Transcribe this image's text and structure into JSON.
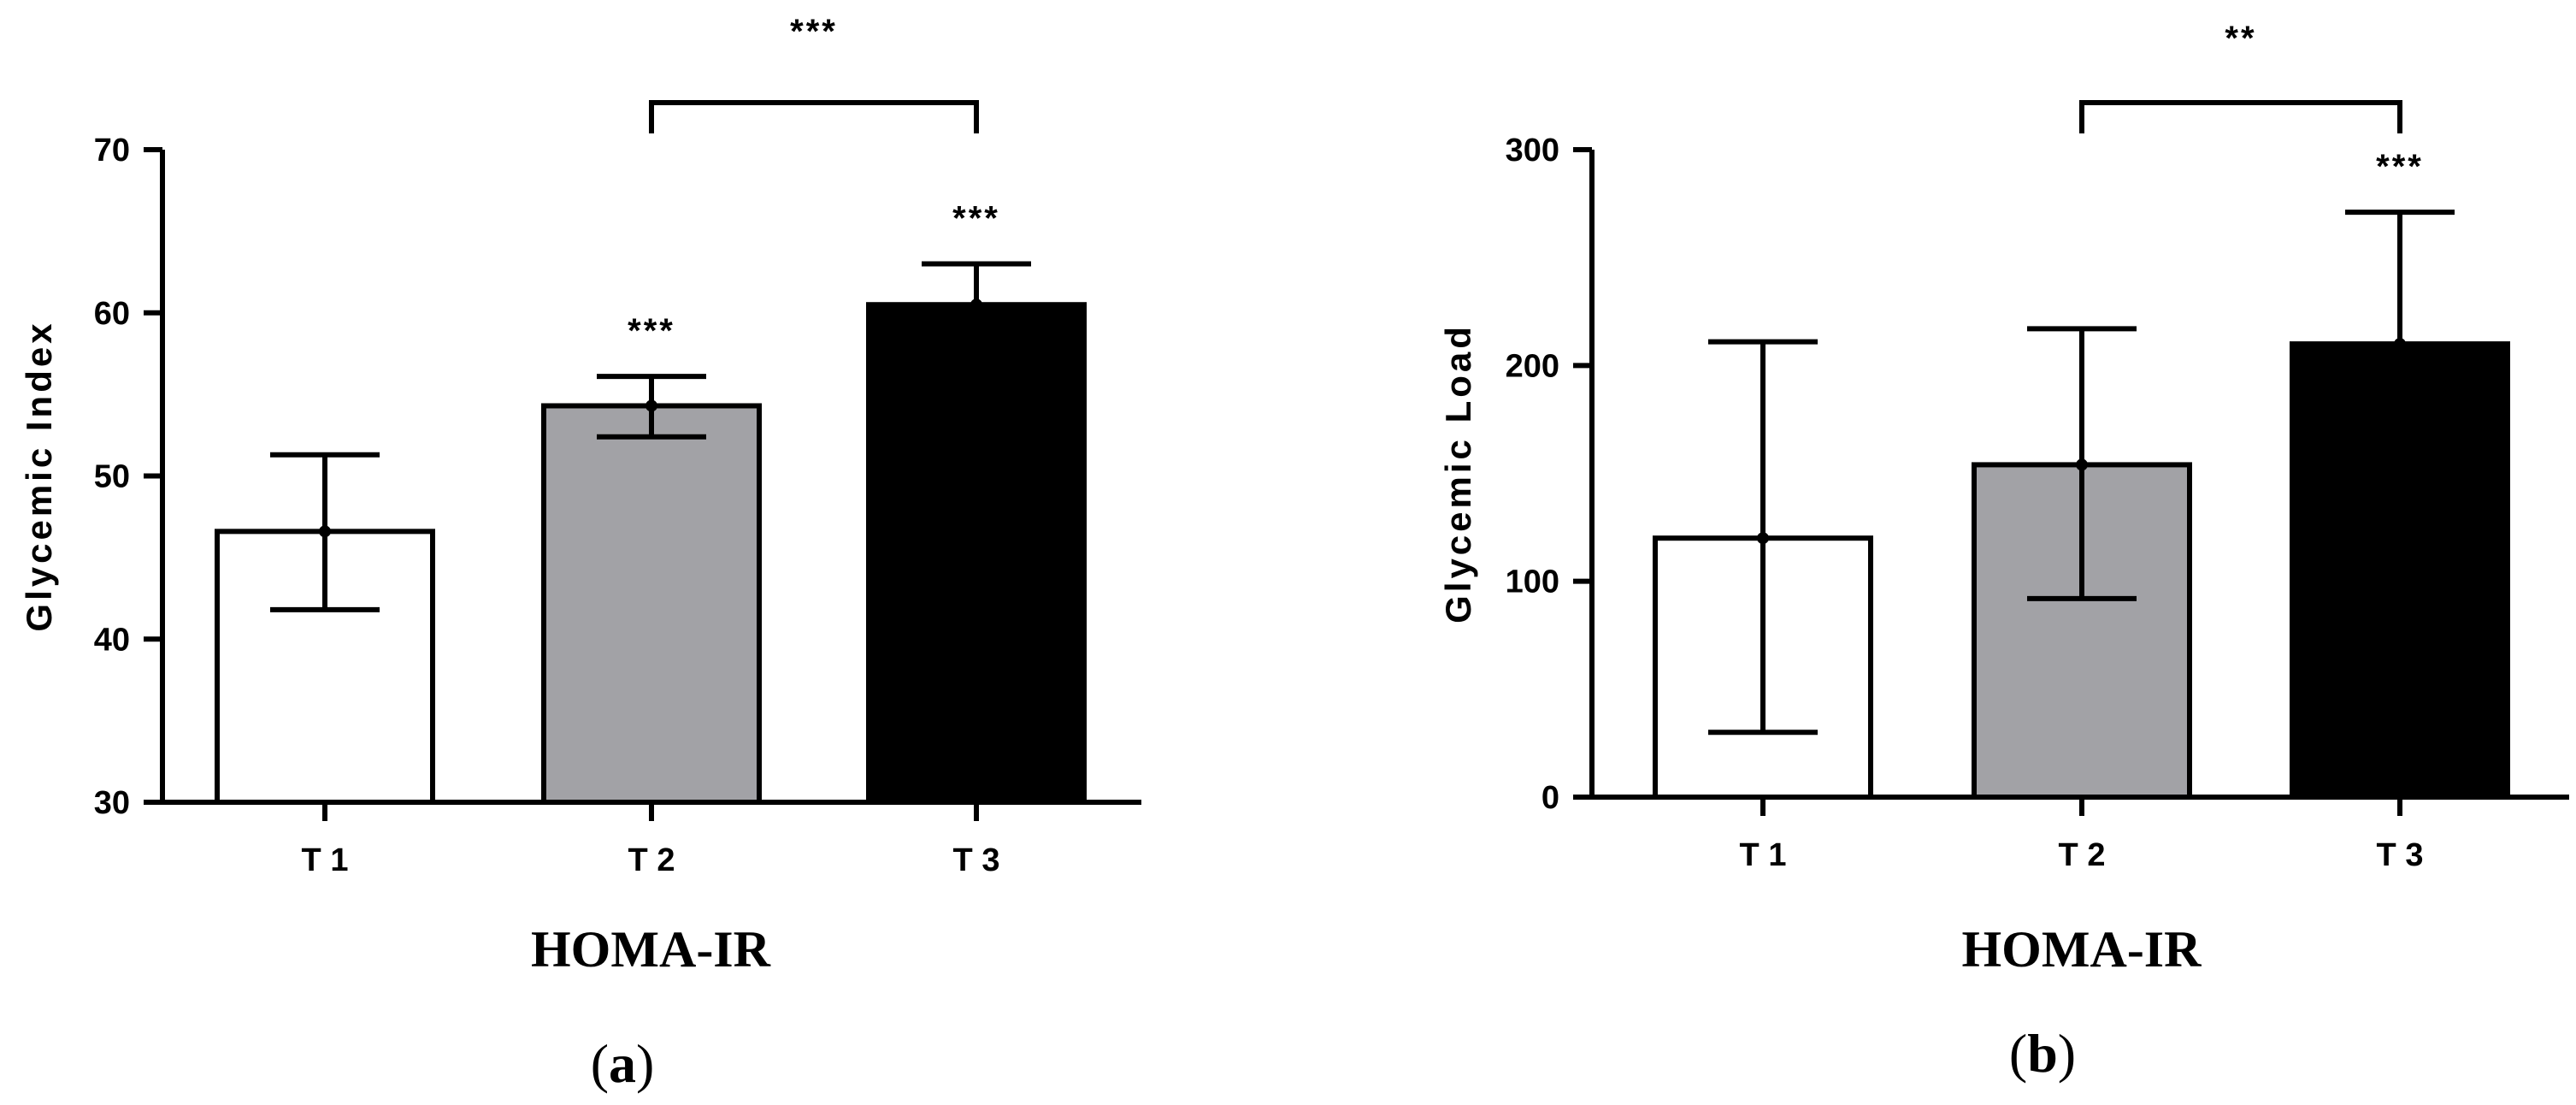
{
  "chart_data": [
    {
      "type": "bar",
      "panel": "a",
      "categories": [
        "T 1",
        "T 2",
        "T 3"
      ],
      "values": [
        46.6,
        54.3,
        60.5
      ],
      "error_low": [
        41.8,
        52.4,
        58.0
      ],
      "error_high": [
        51.3,
        56.1,
        63.0
      ],
      "bar_colors": [
        "#ffffff",
        "#a2a2a6",
        "#000000"
      ],
      "xlabel": "HOMA-IR",
      "ylabel": "Glycemic Index",
      "ylim": [
        30,
        70
      ],
      "yticks": [
        "30",
        "40",
        "50",
        "60",
        "70"
      ],
      "bar_annotations": [
        "",
        "***",
        "***"
      ],
      "bracket": {
        "from": 1,
        "to": 2,
        "label": "***"
      }
    },
    {
      "type": "bar",
      "panel": "b",
      "categories": [
        "T 1",
        "T 2",
        "T 3"
      ],
      "values": [
        120,
        154,
        210
      ],
      "error_low": [
        30,
        92,
        150
      ],
      "error_high": [
        211,
        217,
        271
      ],
      "bar_colors": [
        "#ffffff",
        "#a2a2a6",
        "#000000"
      ],
      "xlabel": "HOMA-IR",
      "ylabel": "Glycemic Load",
      "ylim": [
        0,
        300
      ],
      "yticks": [
        "0",
        "100",
        "200",
        "300"
      ],
      "bar_annotations": [
        "",
        "",
        "***"
      ],
      "bracket": {
        "from": 1,
        "to": 2,
        "label": "**"
      }
    }
  ]
}
